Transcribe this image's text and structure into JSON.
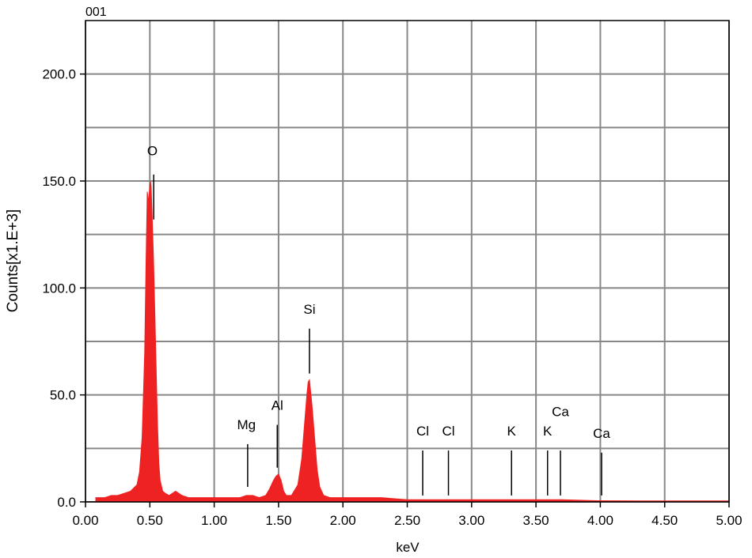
{
  "chart_data": {
    "type": "area",
    "title": "001",
    "xlabel": "keV",
    "ylabel": "Counts[x1.E+3]",
    "xlim": [
      0,
      5
    ],
    "ylim": [
      0,
      225
    ],
    "x_ticks": [
      "0.00",
      "0.50",
      "1.00",
      "1.50",
      "2.00",
      "2.50",
      "3.00",
      "3.50",
      "4.00",
      "4.50",
      "5.00"
    ],
    "x_tick_values": [
      0,
      0.5,
      1,
      1.5,
      2,
      2.5,
      3,
      3.5,
      4,
      4.5,
      5
    ],
    "y_ticks": [
      "0.0",
      "50.0",
      "100.0",
      "150.0",
      "200.0"
    ],
    "y_tick_values": [
      0,
      50,
      100,
      150,
      200
    ],
    "grid": true,
    "colors": {
      "spectrum": "#ee2222",
      "grid": "#888888"
    },
    "series": [
      {
        "x": [
          0.08,
          0.1,
          0.15,
          0.2,
          0.25,
          0.3,
          0.35,
          0.4,
          0.42,
          0.44,
          0.46,
          0.47,
          0.48,
          0.49,
          0.5,
          0.505,
          0.51,
          0.52,
          0.53,
          0.54,
          0.55,
          0.56,
          0.57,
          0.58,
          0.6,
          0.62,
          0.65,
          0.7,
          0.75,
          0.8,
          0.9,
          1.0,
          1.1,
          1.15,
          1.2,
          1.25,
          1.3,
          1.35,
          1.4,
          1.43,
          1.46,
          1.48,
          1.5,
          1.52,
          1.54,
          1.56,
          1.6,
          1.65,
          1.68,
          1.7,
          1.72,
          1.73,
          1.74,
          1.76,
          1.78,
          1.8,
          1.82,
          1.85,
          1.9,
          2.0,
          2.1,
          2.2,
          2.3,
          2.5,
          3.0,
          3.5,
          3.7,
          4.0,
          4.5,
          5.0
        ],
        "values": [
          2,
          2,
          2,
          3,
          3,
          4,
          5,
          8,
          14,
          30,
          70,
          110,
          145,
          140,
          148,
          150,
          147,
          130,
          110,
          85,
          60,
          35,
          18,
          10,
          5,
          4,
          3,
          5,
          3,
          2,
          2,
          2,
          2,
          2,
          2,
          3,
          3,
          2,
          3,
          6,
          10,
          12,
          13,
          10,
          5,
          3,
          3,
          8,
          20,
          35,
          50,
          56,
          57,
          45,
          30,
          15,
          7,
          3,
          2,
          2,
          2,
          2,
          2,
          1,
          1,
          1,
          1,
          0.5,
          0.3,
          0.2
        ]
      }
    ],
    "peaks": [
      {
        "label": "O",
        "x": 0.53,
        "y_top": 153,
        "y_bottom": 132,
        "text_y": 162,
        "text_x": 0.52
      },
      {
        "label": "Mg",
        "x": 1.26,
        "y_top": 27,
        "y_bottom": 7,
        "text_y": 34,
        "text_x": 1.25
      },
      {
        "label": "Al",
        "x": 1.49,
        "y_top": 36,
        "y_bottom": 16,
        "text_y": 43,
        "text_x": 1.49
      },
      {
        "label": "Si",
        "x": 1.74,
        "y_top": 81,
        "y_bottom": 60,
        "text_y": 88,
        "text_x": 1.74
      },
      {
        "label": "Cl",
        "x": 2.62,
        "y_top": 24,
        "y_bottom": 3,
        "text_y": 31,
        "text_x": 2.62
      },
      {
        "label": "Cl",
        "x": 2.82,
        "y_top": 24,
        "y_bottom": 3,
        "text_y": 31,
        "text_x": 2.82
      },
      {
        "label": "K",
        "x": 3.31,
        "y_top": 24,
        "y_bottom": 3,
        "text_y": 31,
        "text_x": 3.31
      },
      {
        "label": "K",
        "x": 3.59,
        "y_top": 24,
        "y_bottom": 3,
        "text_y": 31,
        "text_x": 3.59
      },
      {
        "label": "Ca",
        "x": 3.69,
        "y_top": 24,
        "y_bottom": 3,
        "text_y": 40,
        "text_x": 3.69
      },
      {
        "label": "Ca",
        "x": 4.01,
        "y_top": 23,
        "y_bottom": 3,
        "text_y": 30,
        "text_x": 4.01
      }
    ]
  }
}
